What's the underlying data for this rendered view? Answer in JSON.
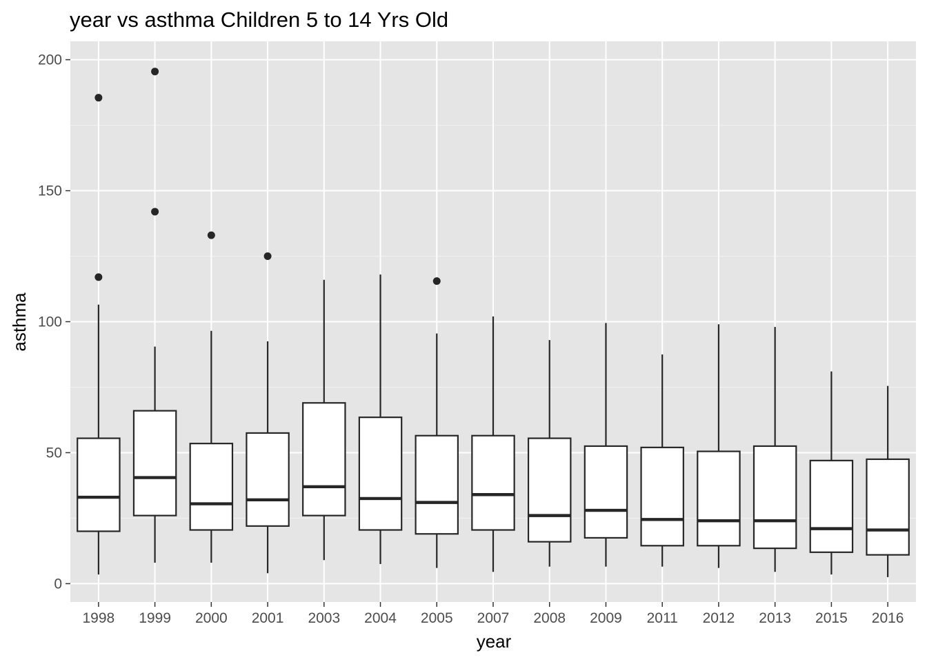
{
  "chart_data": {
    "type": "boxplot",
    "title": "year vs asthma Children 5 to 14 Yrs Old",
    "xlabel": "year",
    "ylabel": "asthma",
    "ylim": [
      -7,
      207
    ],
    "yticks": [
      0,
      50,
      100,
      150,
      200
    ],
    "grid": true,
    "legend": "none",
    "colors": {
      "panel": "#e5e5e5",
      "grid_major": "#ffffff",
      "grid_minor": "#f2f2f2",
      "box_fill": "#ffffff",
      "box_line": "#262626",
      "outlier": "#262626",
      "tick_label": "#4d4d4d"
    },
    "categories": [
      "1998",
      "1999",
      "2000",
      "2001",
      "2003",
      "2004",
      "2005",
      "2007",
      "2008",
      "2009",
      "2011",
      "2012",
      "2013",
      "2015",
      "2016"
    ],
    "boxes": [
      {
        "year": "1998",
        "whisker_low": 3.5,
        "q1": 20,
        "median": 33,
        "q3": 55.5,
        "whisker_high": 106.5,
        "outliers": [
          117,
          185.5
        ]
      },
      {
        "year": "1999",
        "whisker_low": 8,
        "q1": 26,
        "median": 40.5,
        "q3": 66,
        "whisker_high": 90.5,
        "outliers": [
          142,
          195.5
        ]
      },
      {
        "year": "2000",
        "whisker_low": 8,
        "q1": 20.5,
        "median": 30.5,
        "q3": 53.5,
        "whisker_high": 96.5,
        "outliers": [
          133
        ]
      },
      {
        "year": "2001",
        "whisker_low": 4,
        "q1": 22,
        "median": 32,
        "q3": 57.5,
        "whisker_high": 92.5,
        "outliers": [
          125
        ]
      },
      {
        "year": "2003",
        "whisker_low": 9,
        "q1": 26,
        "median": 37,
        "q3": 69,
        "whisker_high": 116,
        "outliers": []
      },
      {
        "year": "2004",
        "whisker_low": 7.5,
        "q1": 20.5,
        "median": 32.5,
        "q3": 63.5,
        "whisker_high": 118,
        "outliers": []
      },
      {
        "year": "2005",
        "whisker_low": 6,
        "q1": 19,
        "median": 31,
        "q3": 56.5,
        "whisker_high": 95.5,
        "outliers": [
          115.5
        ]
      },
      {
        "year": "2007",
        "whisker_low": 4.5,
        "q1": 20.5,
        "median": 34,
        "q3": 56.5,
        "whisker_high": 102,
        "outliers": []
      },
      {
        "year": "2008",
        "whisker_low": 6.5,
        "q1": 16,
        "median": 26,
        "q3": 55.5,
        "whisker_high": 93,
        "outliers": []
      },
      {
        "year": "2009",
        "whisker_low": 6.5,
        "q1": 17.5,
        "median": 28,
        "q3": 52.5,
        "whisker_high": 99.5,
        "outliers": []
      },
      {
        "year": "2011",
        "whisker_low": 6.5,
        "q1": 14.5,
        "median": 24.5,
        "q3": 52,
        "whisker_high": 87.5,
        "outliers": []
      },
      {
        "year": "2012",
        "whisker_low": 6,
        "q1": 14.5,
        "median": 24,
        "q3": 50.5,
        "whisker_high": 99,
        "outliers": []
      },
      {
        "year": "2013",
        "whisker_low": 4.5,
        "q1": 13.5,
        "median": 24,
        "q3": 52.5,
        "whisker_high": 98,
        "outliers": []
      },
      {
        "year": "2015",
        "whisker_low": 3.5,
        "q1": 12,
        "median": 21,
        "q3": 47,
        "whisker_high": 81,
        "outliers": []
      },
      {
        "year": "2016",
        "whisker_low": 2.5,
        "q1": 11,
        "median": 20.5,
        "q3": 47.5,
        "whisker_high": 75.5,
        "outliers": []
      }
    ]
  }
}
